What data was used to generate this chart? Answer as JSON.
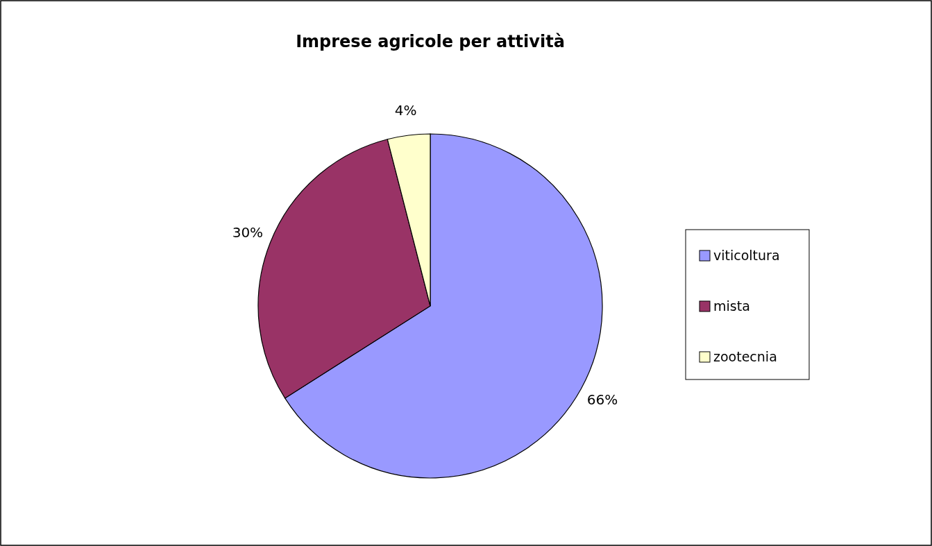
{
  "chart_data": {
    "type": "pie",
    "title": "Imprese agricole per attività",
    "categories": [
      "viticoltura",
      "mista",
      "zootecnia"
    ],
    "values": [
      66,
      30,
      4
    ],
    "value_labels": [
      "66%",
      "30%",
      "4%"
    ],
    "colors": [
      "#9999ff",
      "#993366",
      "#ffffcc"
    ],
    "legend": "right"
  }
}
